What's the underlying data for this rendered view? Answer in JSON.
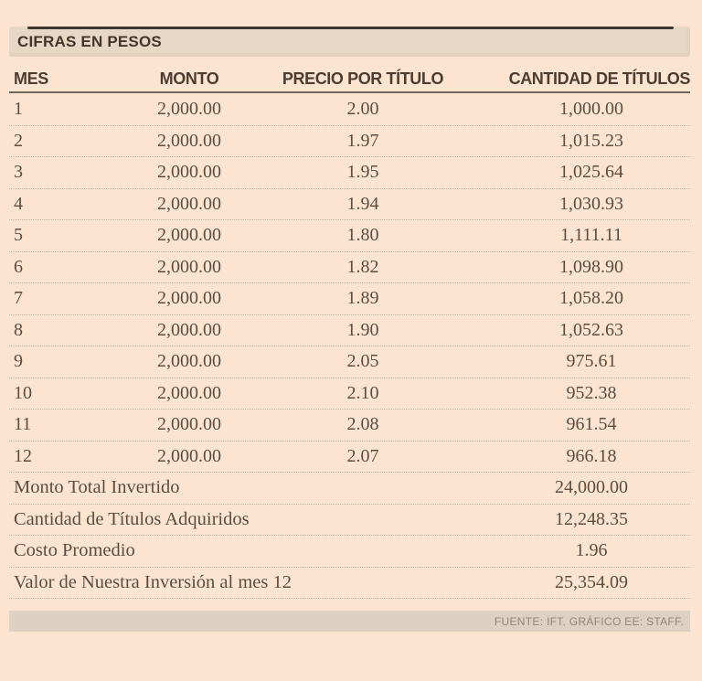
{
  "title": "CIFRAS EN PESOS",
  "table": {
    "columns": [
      "MES",
      "MONTO",
      "PRECIO POR TÍTULO",
      "CANTIDAD DE TÍTULOS"
    ],
    "rows": [
      {
        "mes": "1",
        "monto": "2,000.00",
        "precio": "2.00",
        "cantidad": "1,000.00"
      },
      {
        "mes": "2",
        "monto": "2,000.00",
        "precio": "1.97",
        "cantidad": "1,015.23"
      },
      {
        "mes": "3",
        "monto": "2,000.00",
        "precio": "1.95",
        "cantidad": "1,025.64"
      },
      {
        "mes": "4",
        "monto": "2,000.00",
        "precio": "1.94",
        "cantidad": "1,030.93"
      },
      {
        "mes": "5",
        "monto": "2,000.00",
        "precio": "1.80",
        "cantidad": "1,111.11"
      },
      {
        "mes": "6",
        "monto": "2,000.00",
        "precio": "1.82",
        "cantidad": "1,098.90"
      },
      {
        "mes": "7",
        "monto": "2,000.00",
        "precio": "1.89",
        "cantidad": "1,058.20"
      },
      {
        "mes": "8",
        "monto": "2,000.00",
        "precio": "1.90",
        "cantidad": "1,052.63"
      },
      {
        "mes": "9",
        "monto": "2,000.00",
        "precio": "2.05",
        "cantidad": "975.61"
      },
      {
        "mes": "10",
        "monto": "2,000.00",
        "precio": "2.10",
        "cantidad": "952.38"
      },
      {
        "mes": "11",
        "monto": "2,000.00",
        "precio": "2.08",
        "cantidad": "961.54"
      },
      {
        "mes": "12",
        "monto": "2,000.00",
        "precio": "2.07",
        "cantidad": "966.18"
      }
    ],
    "summary": [
      {
        "label": "Monto Total Invertido",
        "value": "24,000.00"
      },
      {
        "label": "Cantidad de Títulos Adquiridos",
        "value": "12,248.35"
      },
      {
        "label": "Costo Promedio",
        "value": "1.96"
      },
      {
        "label": "Valor de Nuestra Inversión al mes 12",
        "value": "25,354.09"
      }
    ]
  },
  "footer": {
    "source": "FUENTE: IFT. GRÁFICO EE: STAFF."
  },
  "colors": {
    "background": "#fce4d1",
    "title_band": "#e9d7c5",
    "title_text": "#44352a",
    "header_text": "#4c3d31",
    "header_rule": "#6f645a",
    "body_text": "#5c4d40",
    "dotted_separator": "#c7b5a3",
    "footer_bar": "#ddd1c4",
    "footer_text": "#938476",
    "top_rule": "#3d3630"
  },
  "chart_data": {
    "type": "table",
    "title": "CIFRAS EN PESOS",
    "columns": [
      "MES",
      "MONTO",
      "PRECIO POR TÍTULO",
      "CANTIDAD DE TÍTULOS"
    ],
    "rows": [
      [
        1,
        2000.0,
        2.0,
        1000.0
      ],
      [
        2,
        2000.0,
        1.97,
        1015.23
      ],
      [
        3,
        2000.0,
        1.95,
        1025.64
      ],
      [
        4,
        2000.0,
        1.94,
        1030.93
      ],
      [
        5,
        2000.0,
        1.8,
        1111.11
      ],
      [
        6,
        2000.0,
        1.82,
        1098.9
      ],
      [
        7,
        2000.0,
        1.89,
        1058.2
      ],
      [
        8,
        2000.0,
        1.9,
        1052.63
      ],
      [
        9,
        2000.0,
        2.05,
        975.61
      ],
      [
        10,
        2000.0,
        2.1,
        952.38
      ],
      [
        11,
        2000.0,
        2.08,
        961.54
      ],
      [
        12,
        2000.0,
        2.07,
        966.18
      ]
    ],
    "summary": {
      "monto_total_invertido": 24000.0,
      "cantidad_titulos_adquiridos": 12248.35,
      "costo_promedio": 1.96,
      "valor_inversion_mes_12": 25354.09
    },
    "source": "FUENTE: IFT. GRÁFICO EE: STAFF."
  }
}
